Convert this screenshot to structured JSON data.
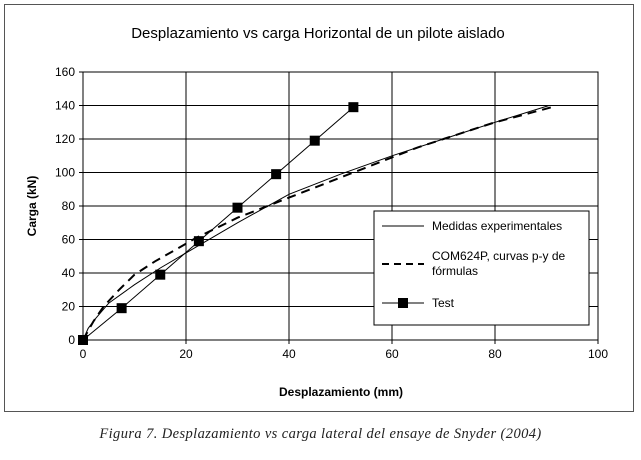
{
  "chart_data": {
    "type": "line",
    "title": "Desplazamiento vs carga Horizontal de un pilote aislado",
    "xlabel": "Desplazamiento (mm)",
    "ylabel": "Carga (kN)",
    "xlim": [
      0,
      100
    ],
    "ylim": [
      0,
      160
    ],
    "xticks": [
      0,
      20,
      40,
      60,
      80,
      100
    ],
    "yticks": [
      0,
      20,
      40,
      60,
      80,
      100,
      120,
      140,
      160
    ],
    "grid": "horizontal and vertical",
    "legend_position": "right-middle",
    "series": [
      {
        "name": "Medidas experimentales",
        "style": "solid",
        "color": "#000000",
        "x": [
          0,
          1,
          2.5,
          5,
          10,
          15,
          20,
          30,
          40,
          50,
          60,
          70,
          80,
          90.5
        ],
        "y": [
          0,
          7,
          13,
          22,
          33,
          43,
          52,
          70,
          87,
          99,
          110,
          120,
          130,
          140
        ]
      },
      {
        "name": "COM624P, curvas p-y de fórmulas",
        "style": "dashed",
        "color": "#000000",
        "x": [
          0,
          2,
          4,
          7,
          10,
          14,
          18,
          22,
          26,
          30,
          35,
          40,
          45,
          50,
          55,
          60,
          65,
          70,
          75,
          80,
          85,
          91
        ],
        "y": [
          0,
          11,
          20,
          30,
          39,
          47,
          54,
          61,
          67,
          73,
          79,
          85,
          91,
          97,
          103,
          109,
          115,
          120,
          125,
          130,
          134,
          139
        ]
      },
      {
        "name": "Test",
        "style": "solid-markers",
        "marker": "square",
        "color": "#000000",
        "x": [
          0,
          7.5,
          15,
          22.5,
          30,
          37.5,
          45,
          52.5
        ],
        "y": [
          0,
          19,
          39,
          59,
          79,
          99,
          119,
          139
        ]
      }
    ]
  },
  "caption": "Figura 7. Desplazamiento vs carga lateral del ensaye de Snyder (2004)",
  "legend_lines": {
    "series_1_line_1": "Medidas experimentales",
    "series_2_line_1": "COM624P, curvas p-y de",
    "series_2_line_2": "fórmulas",
    "series_3_line_1": "Test"
  }
}
